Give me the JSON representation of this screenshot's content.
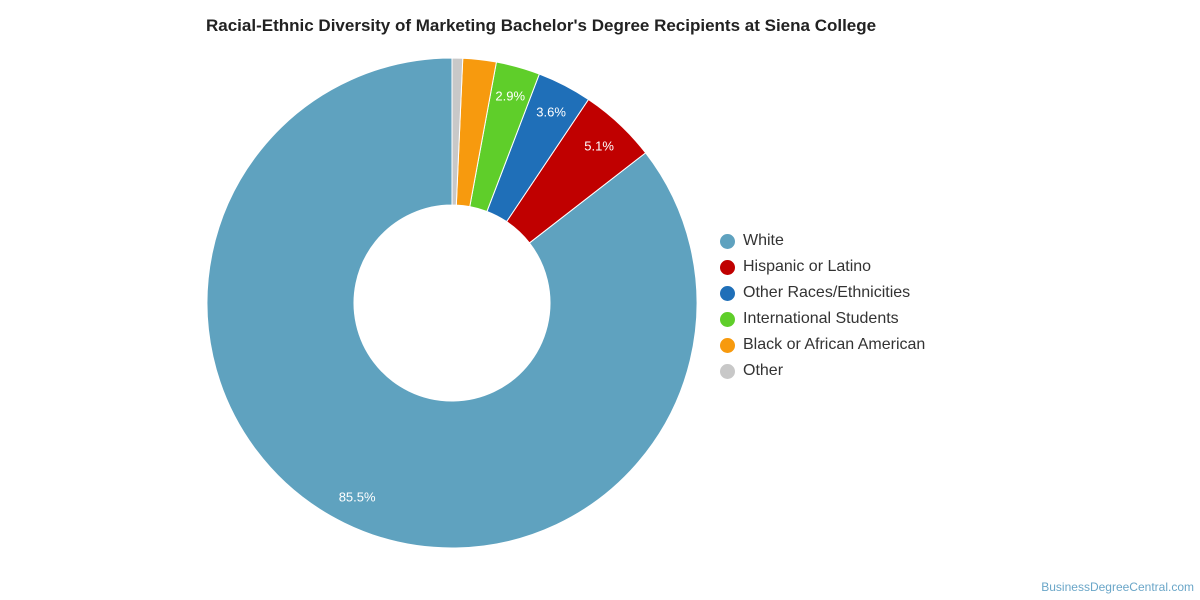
{
  "chart_data": {
    "type": "pie",
    "title": "Racial-Ethnic Diversity of Marketing Bachelor's Degree Recipients at Siena College",
    "legend_position": "right",
    "slices": [
      {
        "label": "White",
        "value": 85.5,
        "value_label": "85.5%",
        "color": "#5fa2bf"
      },
      {
        "label": "Hispanic or Latino",
        "value": 5.1,
        "value_label": "5.1%",
        "color": "#c00000"
      },
      {
        "label": "Other Races/Ethnicities",
        "value": 3.6,
        "value_label": "3.6%",
        "color": "#1f6fb8"
      },
      {
        "label": "International Students",
        "value": 2.9,
        "value_label": "2.9%",
        "color": "#5fce2a"
      },
      {
        "label": "Black or African American",
        "value": 2.2,
        "value_label": "",
        "color": "#f79a0e"
      },
      {
        "label": "Other",
        "value": 0.7,
        "value_label": "",
        "color": "#c8c8c8"
      }
    ]
  },
  "credit": "BusinessDegreeCentral.com"
}
